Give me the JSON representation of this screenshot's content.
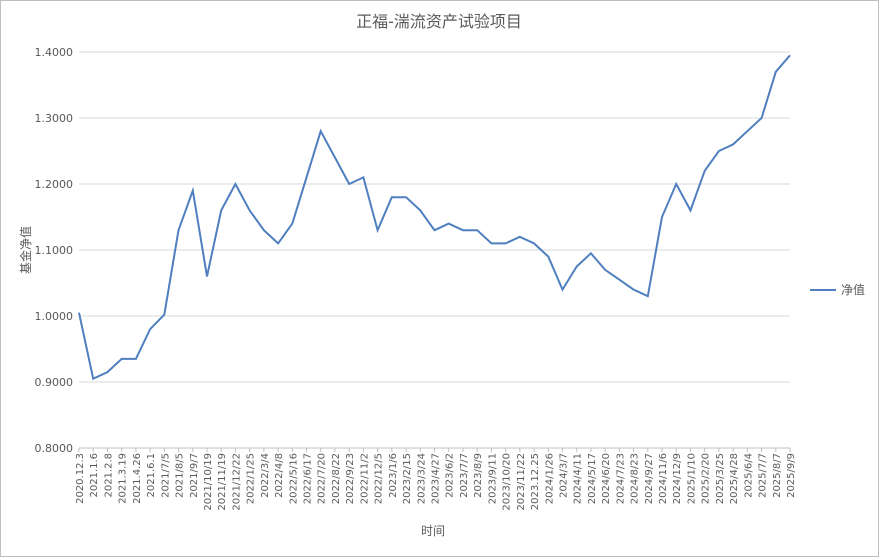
{
  "chart_data": {
    "type": "line",
    "title": "正福-湍流资产试验项目",
    "xlabel": "时间",
    "ylabel": "基金净值",
    "ylim": [
      0.8,
      1.4
    ],
    "yticks": [
      "0.8000",
      "0.9000",
      "1.0000",
      "1.1000",
      "1.2000",
      "1.3000",
      "1.4000"
    ],
    "grid": true,
    "legend_position": "right",
    "categories": [
      "2020.12.3",
      "2021.1.6",
      "2021.2.8",
      "2021.3.19",
      "2021.4.26",
      "2021.6.1",
      "2021/7/5",
      "2021/8/5",
      "2021/9/7",
      "2021/10/19",
      "2021/11/19",
      "2021/12/22",
      "2022/1/25",
      "2022/3/4",
      "2022/4/8",
      "2022/5/16",
      "2022/6/17",
      "2022/7/20",
      "2022/8/22",
      "2022/9/23",
      "2022/11/2",
      "2022/12/5",
      "2023/1/6",
      "2023/2/15",
      "2023/3/24",
      "2023/4/27",
      "2023/6/2",
      "2023/7/7",
      "2023/8/9",
      "2023/9/11",
      "2023/10/20",
      "2023/11/22",
      "2023.12.25",
      "2024/1/26",
      "2024/3/7",
      "2024/4/11",
      "2024/5/17",
      "2024/6/20",
      "2024/7/23",
      "2024/8/23",
      "2024/9/27",
      "2024/11/6",
      "2024/12/9",
      "2025/1/10",
      "2025/2/20",
      "2025/3/25",
      "2025/4/28",
      "2025/6/4",
      "2025/7/7",
      "2025/8/7",
      "2025/9/9"
    ],
    "series": [
      {
        "name": "净值",
        "color": "#4f7fbf",
        "values": [
          1.005,
          0.905,
          0.915,
          0.935,
          0.935,
          0.98,
          1.002,
          1.13,
          1.19,
          1.06,
          1.16,
          1.2,
          1.16,
          1.13,
          1.11,
          1.14,
          1.21,
          1.28,
          1.24,
          1.2,
          1.21,
          1.13,
          1.18,
          1.18,
          1.16,
          1.13,
          1.14,
          1.13,
          1.13,
          1.11,
          1.11,
          1.12,
          1.11,
          1.09,
          1.04,
          1.075,
          1.095,
          1.07,
          1.055,
          1.04,
          1.03,
          1.15,
          1.2,
          1.16,
          1.22,
          1.25,
          1.26,
          1.28,
          1.3,
          1.37,
          1.395
        ]
      }
    ]
  }
}
